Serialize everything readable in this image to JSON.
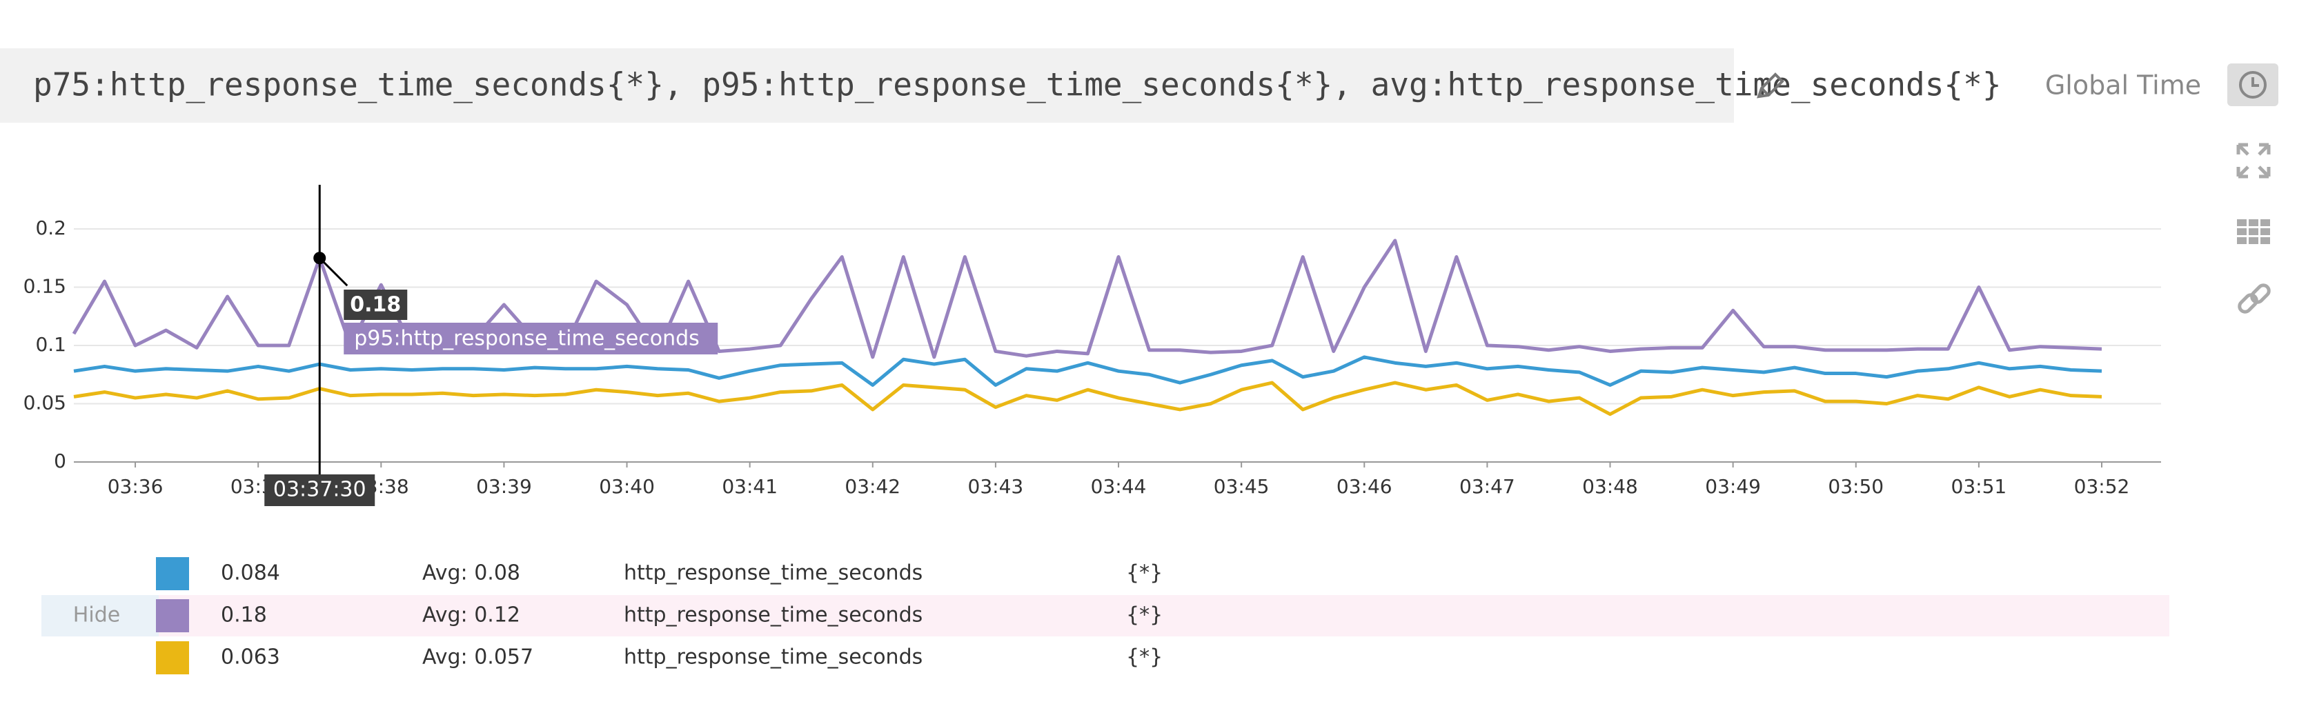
{
  "header": {
    "query": "p75:http_response_time_seconds{*}, p95:http_response_time_seconds{*}, avg:http_response_time_seconds{*}",
    "global_time": "Global Time"
  },
  "chart_data": {
    "type": "line",
    "categories": [
      null,
      null,
      "03:36",
      null,
      null,
      null,
      "03:37",
      null,
      null,
      null,
      "03:38",
      null,
      null,
      null,
      "03:39",
      null,
      null,
      null,
      "03:40",
      null,
      null,
      null,
      "03:41",
      null,
      null,
      null,
      "03:42",
      null,
      null,
      null,
      "03:43",
      null,
      null,
      null,
      "03:44",
      null,
      null,
      null,
      "03:45",
      null,
      null,
      null,
      "03:46",
      null,
      null,
      null,
      "03:47",
      null,
      null,
      null,
      "03:48",
      null,
      null,
      null,
      "03:49",
      null,
      null,
      null,
      "03:50",
      null,
      null,
      null,
      "03:51",
      null,
      null,
      null,
      "03:52"
    ],
    "series": [
      {
        "color": "#3a9bd3",
        "values": [
          0.078,
          0.082,
          0.078,
          0.08,
          0.079,
          0.078,
          0.082,
          0.078,
          0.084,
          0.079,
          0.08,
          0.079,
          0.08,
          0.08,
          0.079,
          0.081,
          0.08,
          0.08,
          0.082,
          0.08,
          0.079,
          0.072,
          0.078,
          0.083,
          0.084,
          0.085,
          0.066,
          0.088,
          0.084,
          0.088,
          0.066,
          0.08,
          0.078,
          0.085,
          0.078,
          0.075,
          0.068,
          0.075,
          0.083,
          0.087,
          0.073,
          0.078,
          0.09,
          0.085,
          0.082,
          0.085,
          0.08,
          0.082,
          0.079,
          0.077,
          0.066,
          0.078,
          0.077,
          0.081,
          0.079,
          0.077,
          0.081,
          0.076,
          0.076,
          0.073,
          0.078,
          0.08,
          0.085,
          0.08,
          0.082,
          0.079,
          0.078
        ]
      },
      {
        "color": "#9883bf",
        "values": [
          0.11,
          0.155,
          0.1,
          0.113,
          0.098,
          0.142,
          0.1,
          0.1,
          0.175,
          0.1,
          0.152,
          0.1,
          0.11,
          0.105,
          0.135,
          0.105,
          0.1,
          0.155,
          0.135,
          0.095,
          0.155,
          0.095,
          0.097,
          0.1,
          0.14,
          0.176,
          0.09,
          0.176,
          0.09,
          0.176,
          0.095,
          0.091,
          0.095,
          0.093,
          0.176,
          0.096,
          0.096,
          0.094,
          0.095,
          0.1,
          0.176,
          0.095,
          0.15,
          0.19,
          0.095,
          0.176,
          0.1,
          0.099,
          0.096,
          0.099,
          0.095,
          0.097,
          0.098,
          0.098,
          0.13,
          0.099,
          0.099,
          0.096,
          0.096,
          0.096,
          0.097,
          0.097,
          0.15,
          0.096,
          0.099,
          0.098,
          0.097
        ]
      },
      {
        "color": "#eab714",
        "values": [
          0.056,
          0.06,
          0.055,
          0.058,
          0.055,
          0.061,
          0.054,
          0.055,
          0.063,
          0.057,
          0.058,
          0.058,
          0.059,
          0.057,
          0.058,
          0.057,
          0.058,
          0.062,
          0.06,
          0.057,
          0.059,
          0.052,
          0.055,
          0.06,
          0.061,
          0.066,
          0.045,
          0.066,
          0.064,
          0.062,
          0.047,
          0.057,
          0.053,
          0.062,
          0.055,
          0.05,
          0.045,
          0.05,
          0.062,
          0.068,
          0.045,
          0.055,
          0.062,
          0.068,
          0.062,
          0.066,
          0.053,
          0.058,
          0.052,
          0.055,
          0.041,
          0.055,
          0.056,
          0.062,
          0.057,
          0.06,
          0.061,
          0.052,
          0.052,
          0.05,
          0.057,
          0.054,
          0.064,
          0.056,
          0.062,
          0.057,
          0.056
        ]
      }
    ],
    "ylim": [
      0,
      0.2
    ],
    "yticks": [
      0,
      0.05,
      0.1,
      0.15,
      0.2
    ],
    "grid": true,
    "crosshair": {
      "time": "03:37:30",
      "value_label": "0.18",
      "series_label": "p95:http_response_time_seconds"
    }
  },
  "legend": {
    "hide": "Hide",
    "rows": [
      {
        "value": "0.084",
        "avg": "Avg: 0.08",
        "metric": "http_response_time_seconds",
        "scope": "{*}"
      },
      {
        "value": "0.18",
        "avg": "Avg: 0.12",
        "metric": "http_response_time_seconds",
        "scope": "{*}"
      },
      {
        "value": "0.063",
        "avg": "Avg: 0.057",
        "metric": "http_response_time_seconds",
        "scope": "{*}"
      }
    ]
  }
}
